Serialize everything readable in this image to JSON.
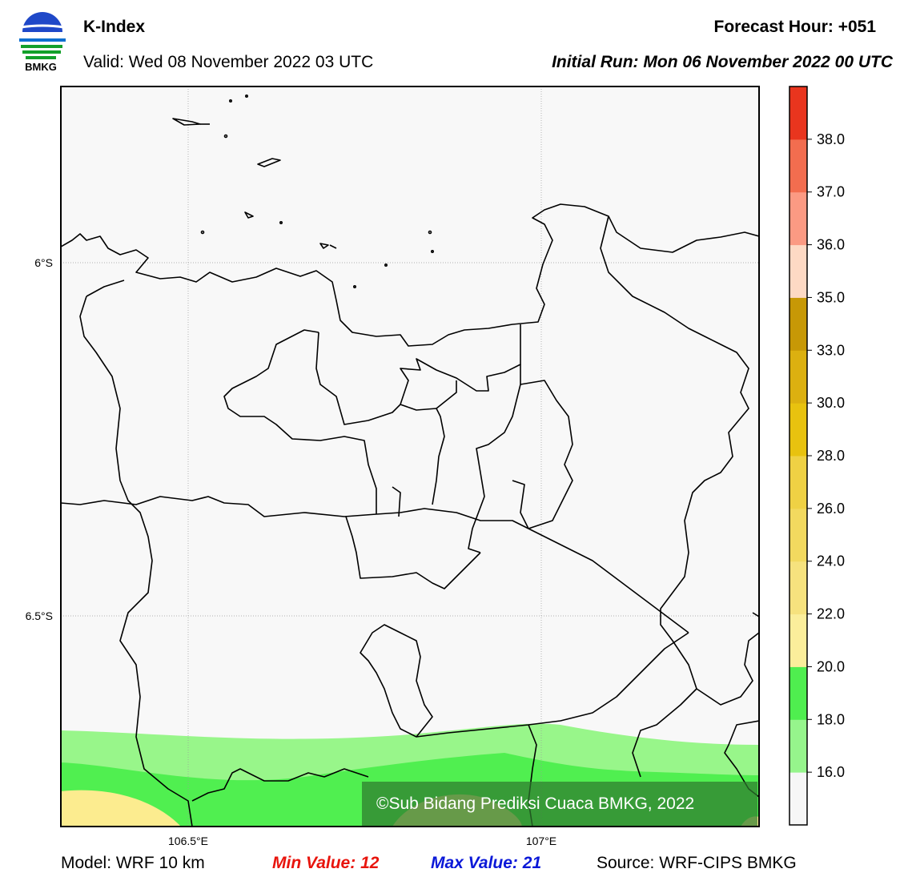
{
  "header": {
    "title": "K-Index",
    "valid": "Valid: Wed 08 November 2022 03 UTC",
    "forecast_hour": "Forecast Hour: +051",
    "initial_run": "Initial Run: Mon 06 November 2022 00 UTC",
    "logo_text": "BMKG"
  },
  "map": {
    "lat_labels": [
      "6°S",
      "6.5°S"
    ],
    "lon_labels": [
      "106.5°E",
      "107°E"
    ],
    "watermark": "©Sub Bidang Prediksi Cuaca BMKG, 2022",
    "colors": {
      "background": "#f8f8f8",
      "light_green": "#98f68a",
      "green": "#50ef50",
      "pale_yellow": "#fcec8f",
      "watermark_box": "#2e7a2e"
    }
  },
  "colorbar": {
    "labels": [
      "38.0",
      "37.0",
      "36.0",
      "35.0",
      "33.0",
      "30.0",
      "28.0",
      "26.0",
      "24.0",
      "22.0",
      "20.0",
      "18.0",
      "16.0"
    ],
    "colors": [
      "#f6f6f6",
      "#96f58c",
      "#4fee4f",
      "#fbee9b",
      "#f6e27e",
      "#f2d95f",
      "#efd144",
      "#e8c20f",
      "#dcb010",
      "#c79806",
      "#fdd9c4",
      "#fb9a83",
      "#f26d4f",
      "#e9351e"
    ]
  },
  "footer": {
    "model": "Model: WRF 10 km",
    "min_value": "Min Value: 12",
    "max_value": "Max Value: 21",
    "source": "Source: WRF-CIPS BMKG"
  }
}
